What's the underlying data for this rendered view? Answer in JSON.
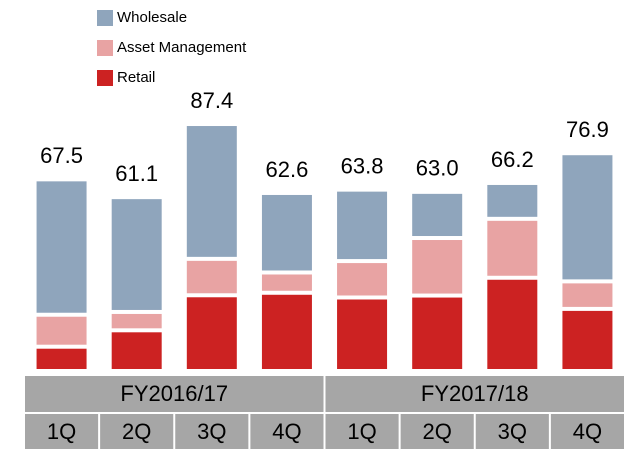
{
  "chart_data": {
    "type": "stacked_bar",
    "categories": [
      "1Q",
      "2Q",
      "3Q",
      "4Q",
      "1Q",
      "2Q",
      "3Q",
      "4Q"
    ],
    "groups": [
      "FY2016/17",
      "FY2017/18"
    ],
    "series": [
      {
        "name": "Retail",
        "color": "#cc2222",
        "values": [
          7.3,
          13.2,
          25.8,
          26.7,
          25.0,
          25.7,
          32.1,
          20.9
        ]
      },
      {
        "name": "Asset Management",
        "color": "#e8a3a3",
        "values": [
          11.5,
          6.6,
          13.1,
          7.3,
          13.1,
          20.7,
          21.2,
          9.9
        ]
      },
      {
        "name": "Wholesale",
        "color": "#8fa5bc",
        "values": [
          48.7,
          41.3,
          48.5,
          28.6,
          25.7,
          16.6,
          12.9,
          46.1
        ]
      }
    ],
    "totals": [
      67.5,
      61.1,
      87.4,
      62.6,
      63.8,
      63.0,
      66.2,
      76.9
    ],
    "total_labels": [
      "67.5",
      "61.1",
      "87.4",
      "62.6",
      "63.8",
      "63.0",
      "66.2",
      "76.9"
    ]
  }
}
